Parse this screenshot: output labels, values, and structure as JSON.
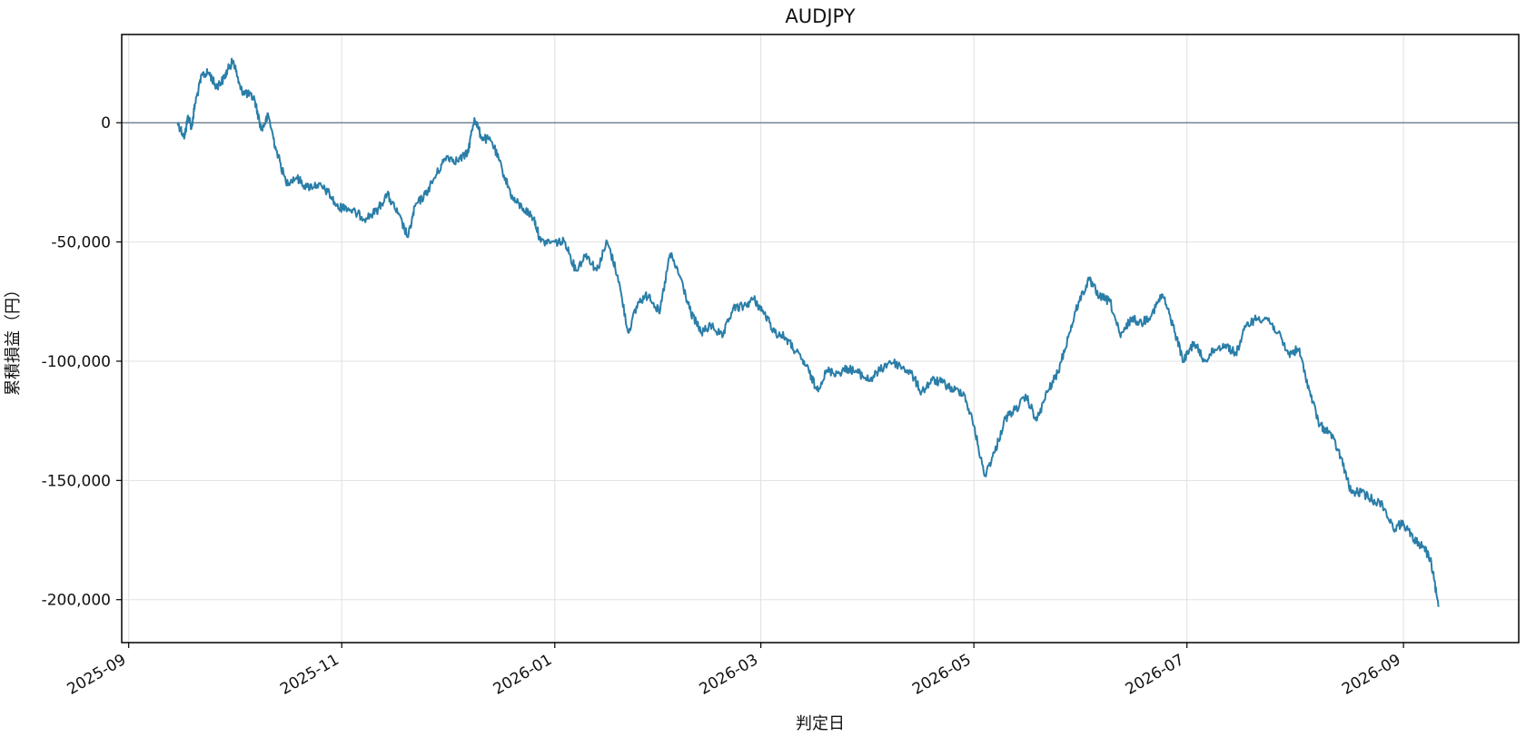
{
  "chart_data": {
    "type": "line",
    "title": "AUDJPY",
    "xlabel": "判定日",
    "ylabel": "累積損益（円）",
    "x_ticks": [
      "2025-09",
      "2025-11",
      "2026-01",
      "2026-03",
      "2026-05",
      "2026-07",
      "2026-09"
    ],
    "y_ticks": [
      0,
      -50000,
      -100000,
      -150000,
      -200000
    ],
    "y_tick_labels": [
      "0",
      "-50,000",
      "-100,000",
      "-150,000",
      "-200,000"
    ],
    "xlim": [
      "2025-08-30",
      "2026-10-04"
    ],
    "ylim": [
      -218000,
      37000
    ],
    "grid": true,
    "zero_line": true,
    "line_color": "#2a7ea8",
    "series": [
      {
        "x": [
          "2025-09-15",
          "2025-09-17",
          "2025-09-18",
          "2025-09-19",
          "2025-09-20",
          "2025-09-22",
          "2025-09-24",
          "2025-09-26",
          "2025-09-28",
          "2025-09-30",
          "2025-10-01",
          "2025-10-03",
          "2025-10-05",
          "2025-10-07",
          "2025-10-09",
          "2025-10-11",
          "2025-10-13",
          "2025-10-16",
          "2025-10-19",
          "2025-10-22",
          "2025-10-25",
          "2025-10-28",
          "2025-10-31",
          "2025-11-02",
          "2025-11-05",
          "2025-11-08",
          "2025-11-11",
          "2025-11-14",
          "2025-11-17",
          "2025-11-20",
          "2025-11-22",
          "2025-11-25",
          "2025-11-28",
          "2025-12-01",
          "2025-12-04",
          "2025-12-07",
          "2025-12-09",
          "2025-12-11",
          "2025-12-14",
          "2025-12-17",
          "2025-12-20",
          "2025-12-23",
          "2025-12-26",
          "2025-12-28",
          "2026-01-01",
          "2026-01-04",
          "2026-01-07",
          "2026-01-10",
          "2026-01-13",
          "2026-01-16",
          "2026-01-19",
          "2026-01-22",
          "2026-01-25",
          "2026-01-28",
          "2026-01-31",
          "2026-02-03",
          "2026-02-06",
          "2026-02-09",
          "2026-02-12",
          "2026-02-15",
          "2026-02-18",
          "2026-02-21",
          "2026-02-24",
          "2026-02-27",
          "2026-03-02",
          "2026-03-05",
          "2026-03-08",
          "2026-03-11",
          "2026-03-14",
          "2026-03-17",
          "2026-03-20",
          "2026-03-23",
          "2026-03-26",
          "2026-03-29",
          "2026-04-01",
          "2026-04-04",
          "2026-04-07",
          "2026-04-10",
          "2026-04-13",
          "2026-04-16",
          "2026-04-19",
          "2026-04-22",
          "2026-04-25",
          "2026-04-28",
          "2026-05-01",
          "2026-05-04",
          "2026-05-07",
          "2026-05-10",
          "2026-05-13",
          "2026-05-16",
          "2026-05-19",
          "2026-05-22",
          "2026-05-25",
          "2026-05-28",
          "2026-05-31",
          "2026-06-03",
          "2026-06-06",
          "2026-06-09",
          "2026-06-12",
          "2026-06-15",
          "2026-06-18",
          "2026-06-21",
          "2026-06-24",
          "2026-06-27",
          "2026-06-30",
          "2026-07-03",
          "2026-07-06",
          "2026-07-09",
          "2026-07-12",
          "2026-07-15",
          "2026-07-18",
          "2026-07-21",
          "2026-07-24",
          "2026-07-27",
          "2026-07-30",
          "2026-08-02",
          "2026-08-05",
          "2026-08-08",
          "2026-08-11",
          "2026-08-14",
          "2026-08-17",
          "2026-08-20",
          "2026-08-23",
          "2026-08-26",
          "2026-08-29",
          "2026-09-01",
          "2026-09-04",
          "2026-09-07",
          "2026-09-09",
          "2026-09-11"
        ],
        "values": [
          0,
          -6000,
          3000,
          -2000,
          8000,
          20000,
          21000,
          15000,
          18000,
          24000,
          26000,
          14000,
          12000,
          10000,
          -3000,
          3000,
          -10000,
          -25000,
          -23000,
          -27000,
          -26000,
          -29000,
          -36000,
          -35000,
          -38000,
          -40000,
          -37000,
          -30000,
          -38000,
          -48000,
          -35000,
          -30000,
          -22000,
          -14000,
          -16000,
          -13000,
          2000,
          -6000,
          -8000,
          -20000,
          -32000,
          -36000,
          -40000,
          -50000,
          -50000,
          -50000,
          -62000,
          -55000,
          -62000,
          -50000,
          -64000,
          -88000,
          -75000,
          -72000,
          -80000,
          -55000,
          -65000,
          -80000,
          -88000,
          -85000,
          -90000,
          -78000,
          -77000,
          -74000,
          -80000,
          -88000,
          -90000,
          -96000,
          -102000,
          -112000,
          -104000,
          -105000,
          -103000,
          -105000,
          -108000,
          -104000,
          -100000,
          -102000,
          -105000,
          -113000,
          -108000,
          -109000,
          -112000,
          -113000,
          -127000,
          -148000,
          -138000,
          -124000,
          -120000,
          -115000,
          -125000,
          -113000,
          -105000,
          -90000,
          -75000,
          -66000,
          -73000,
          -75000,
          -90000,
          -82000,
          -84000,
          -80000,
          -72000,
          -85000,
          -100000,
          -92000,
          -100000,
          -95000,
          -93000,
          -97000,
          -85000,
          -82000,
          -82000,
          -88000,
          -97000,
          -95000,
          -112000,
          -127000,
          -130000,
          -140000,
          -155000,
          -155000,
          -158000,
          -160000,
          -170000,
          -168000,
          -175000,
          -178000,
          -185000,
          -203000
        ]
      }
    ]
  }
}
